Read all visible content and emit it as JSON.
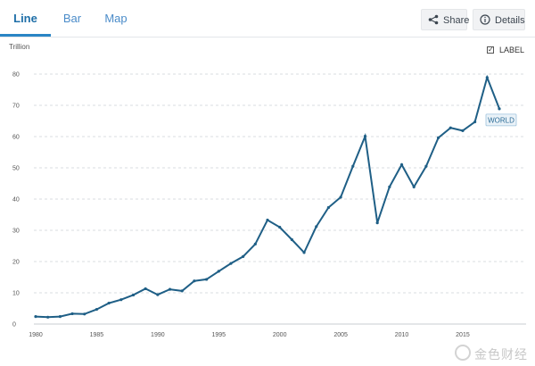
{
  "tabs": [
    {
      "label": "Line",
      "active": true
    },
    {
      "label": "Bar",
      "active": false
    },
    {
      "label": "Map",
      "active": false
    }
  ],
  "toolbar": {
    "share_label": "Share",
    "share_icon": "share-icon",
    "details_label": "Details",
    "details_icon": "info-icon"
  },
  "unit_label": "Trillion",
  "label_toggle": {
    "text": "LABEL",
    "checked": true
  },
  "watermark": "金色财经",
  "colors": {
    "line": "#1f5f86",
    "accent": "#2a85c5",
    "grid": "#d9dde2"
  },
  "chart_data": {
    "type": "line",
    "x": [
      1980,
      1981,
      1982,
      1983,
      1984,
      1985,
      1986,
      1987,
      1988,
      1989,
      1990,
      1991,
      1992,
      1993,
      1994,
      1995,
      1996,
      1997,
      1998,
      1999,
      2000,
      2001,
      2002,
      2003,
      2004,
      2005,
      2006,
      2007,
      2008,
      2009,
      2010,
      2011,
      2012,
      2013,
      2014,
      2015,
      2016,
      2017,
      2018
    ],
    "series": [
      {
        "name": "WORLD",
        "values": [
          2.4,
          2.2,
          2.4,
          3.3,
          3.2,
          4.7,
          6.7,
          7.8,
          9.3,
          11.3,
          9.4,
          11.1,
          10.6,
          13.8,
          14.3,
          16.9,
          19.4,
          21.6,
          25.6,
          33.3,
          31.0,
          27.0,
          22.9,
          31.2,
          37.3,
          40.6,
          50.5,
          60.1,
          32.4,
          43.9,
          51.0,
          43.9,
          50.5,
          59.6,
          62.8,
          61.9,
          64.7,
          78.9,
          68.9
        ]
      }
    ],
    "title": "",
    "xlabel": "",
    "ylabel": "Trillion",
    "xlim": [
      1980,
      2018
    ],
    "ylim": [
      0,
      80
    ],
    "xticks": [
      1980,
      1985,
      1990,
      1995,
      2000,
      2005,
      2010,
      2015
    ],
    "yticks": [
      0,
      10,
      20,
      30,
      40,
      50,
      60,
      70,
      80
    ],
    "grid": "horizontal dashed",
    "end_label": "WORLD"
  }
}
